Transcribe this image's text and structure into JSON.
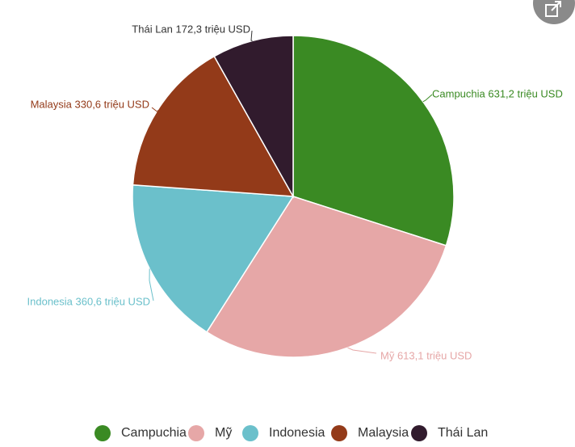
{
  "chart_data": {
    "type": "pie",
    "categories": [
      "Campuchia",
      "Mỹ",
      "Indonesia",
      "Malaysia",
      "Thái Lan"
    ],
    "values": [
      631.2,
      613.1,
      360.6,
      330.6,
      172.3
    ],
    "data_labels": [
      "Campuchia 631,2 triệu USD",
      "Mỹ 613,1 triệu USD",
      "Indonesia 360,6 triệu USD",
      "Malaysia 330,6 triệu USD",
      "Thái Lan 172,3 triệu USD"
    ],
    "colors": [
      "#3a8a23",
      "#e6a7a7",
      "#6bc0cb",
      "#933a19",
      "#311b2d"
    ],
    "legend_position": "bottom",
    "start_angle_deg": 0,
    "direction": "clockwise"
  },
  "icons": {
    "share_button": "share-icon"
  }
}
